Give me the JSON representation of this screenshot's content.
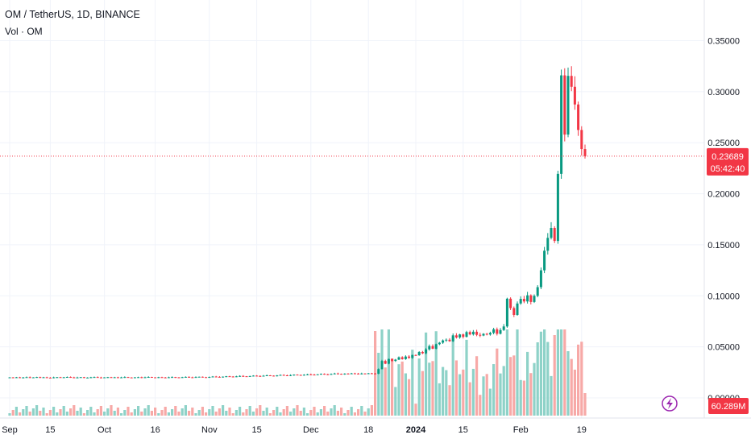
{
  "legend": {
    "symbol_line": "OM / TetherUS, 1D, BINANCE",
    "volume_line": "Vol · OM"
  },
  "price_label": {
    "value": "0.23689",
    "countdown": "05:42:40",
    "color": "#f23645"
  },
  "volume_label": {
    "value": "60.289M",
    "color": "#f23645"
  },
  "colors": {
    "up": "#089981",
    "down": "#f23645",
    "vol_up": "#8ed2c8",
    "vol_down": "#f7a9a7",
    "grid": "#f0f3fa",
    "accent_bolt": "#9c27b0"
  },
  "icons": [
    "lightning-bolt-icon"
  ],
  "chart_data": {
    "type": "candlestick",
    "symbol": "OM / TetherUS",
    "interval": "1D",
    "exchange": "BINANCE",
    "y_ticks": [
      "0.35000",
      "0.30000",
      "0.25000",
      "0.20000",
      "0.15000",
      "0.10000",
      "0.05000",
      "0.00000"
    ],
    "ylim": [
      -0.0033,
      0.3637
    ],
    "x_ticks": [
      {
        "label": "Sep",
        "day": 0,
        "bold": false
      },
      {
        "label": "15",
        "day": 12,
        "bold": false
      },
      {
        "label": "Oct",
        "day": 28,
        "bold": false
      },
      {
        "label": "16",
        "day": 43,
        "bold": false
      },
      {
        "label": "Nov",
        "day": 59,
        "bold": false
      },
      {
        "label": "15",
        "day": 73,
        "bold": false
      },
      {
        "label": "Dec",
        "day": 89,
        "bold": false
      },
      {
        "label": "18",
        "day": 106,
        "bold": false
      },
      {
        "label": "2024",
        "day": 120,
        "bold": true
      },
      {
        "label": "15",
        "day": 134,
        "bold": false
      },
      {
        "label": "Feb",
        "day": 151,
        "bold": false
      },
      {
        "label": "19",
        "day": 169,
        "bold": false
      }
    ],
    "last_price": 0.23689,
    "countdown": "05:42:40",
    "volume_last": "60.289M",
    "grid": true,
    "closes": [
      0.0201,
      0.0199,
      0.0202,
      0.0198,
      0.02,
      0.0203,
      0.0197,
      0.0201,
      0.0204,
      0.0199,
      0.0202,
      0.0198,
      0.0196,
      0.0201,
      0.0203,
      0.0199,
      0.0202,
      0.0205,
      0.0201,
      0.0198,
      0.02,
      0.0203,
      0.0197,
      0.0199,
      0.0202,
      0.0204,
      0.02,
      0.0198,
      0.0201,
      0.0203,
      0.0199,
      0.0202,
      0.0198,
      0.0201,
      0.0204,
      0.02,
      0.0197,
      0.0201,
      0.0203,
      0.0198,
      0.0202,
      0.0205,
      0.0201,
      0.0199,
      0.0203,
      0.02,
      0.0198,
      0.0202,
      0.0204,
      0.0201,
      0.0199,
      0.0203,
      0.0206,
      0.0202,
      0.02,
      0.0204,
      0.0207,
      0.0203,
      0.0201,
      0.0205,
      0.0209,
      0.0206,
      0.0204,
      0.0208,
      0.0212,
      0.0209,
      0.0207,
      0.0211,
      0.0215,
      0.0212,
      0.021,
      0.0214,
      0.0218,
      0.0215,
      0.0212,
      0.0217,
      0.0221,
      0.0218,
      0.0215,
      0.022,
      0.0225,
      0.0221,
      0.0218,
      0.0223,
      0.0228,
      0.0225,
      0.0222,
      0.0227,
      0.0231,
      0.0228,
      0.0226,
      0.0231,
      0.0236,
      0.0232,
      0.0229,
      0.0234,
      0.0239,
      0.0236,
      0.0233,
      0.0238,
      0.0236,
      0.024,
      0.0238,
      0.0236,
      0.0239,
      0.0237,
      0.0241,
      0.0239,
      0.0237,
      0.0282,
      0.0362,
      0.0335,
      0.0381,
      0.0362,
      0.0375,
      0.0398,
      0.038,
      0.0405,
      0.0392,
      0.042,
      0.0418,
      0.045,
      0.0437,
      0.0475,
      0.0508,
      0.0482,
      0.0526,
      0.0541,
      0.0563,
      0.057,
      0.0555,
      0.0613,
      0.0592,
      0.0622,
      0.0598,
      0.0645,
      0.0622,
      0.0648,
      0.0618,
      0.0611,
      0.0628,
      0.0621,
      0.0637,
      0.0672,
      0.0628,
      0.0665,
      0.07,
      0.0972,
      0.088,
      0.0813,
      0.0925,
      0.097,
      0.0945,
      0.1005,
      0.094,
      0.1,
      0.1085,
      0.125,
      0.1442,
      0.1568,
      0.1665,
      0.1538,
      0.2195,
      0.316,
      0.258,
      0.3155,
      0.3048,
      0.2875,
      0.2625,
      0.2438,
      0.2369
    ]
  }
}
